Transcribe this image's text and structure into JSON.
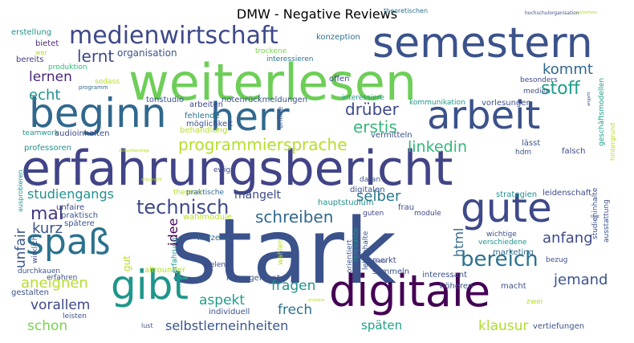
{
  "title": "DMW - Negative Reviews",
  "words": [
    {
      "text": "stark",
      "color": "#3b528b"
    },
    {
      "text": "weiterlesen",
      "color": "#6ece58"
    },
    {
      "text": "erfahrungsbericht",
      "color": "#414487"
    },
    {
      "text": "digitale",
      "color": "#440154"
    },
    {
      "text": "gibt",
      "color": "#1f968b"
    },
    {
      "text": "semestern",
      "color": "#3b528b"
    },
    {
      "text": "beginn",
      "color": "#31688e"
    },
    {
      "text": "herr",
      "color": "#31688e"
    },
    {
      "text": "arbeit",
      "color": "#3b528b"
    },
    {
      "text": "gute",
      "color": "#3e4989"
    },
    {
      "text": "spaß",
      "color": "#2c728e"
    },
    {
      "text": "medienwirtschaft",
      "color": "#3e4989"
    },
    {
      "text": "bereich",
      "color": "#2c728e"
    },
    {
      "text": "technisch",
      "color": "#3e4989"
    },
    {
      "text": "programmiersprache",
      "color": "#b5de2b"
    },
    {
      "text": "schreiben",
      "color": "#31688e"
    },
    {
      "text": "lernt",
      "color": "#3e4989"
    },
    {
      "text": "lernen",
      "color": "#482878"
    },
    {
      "text": "echt",
      "color": "#21918c"
    },
    {
      "text": "stoff",
      "color": "#1f9e89"
    },
    {
      "text": "kommt",
      "color": "#31688e"
    },
    {
      "text": "drüber",
      "color": "#3e4989"
    },
    {
      "text": "erstis",
      "color": "#35b779"
    },
    {
      "text": "linkedin",
      "color": "#35b779"
    },
    {
      "text": "studiengangs",
      "color": "#21918c"
    },
    {
      "text": "mal",
      "color": "#443983"
    },
    {
      "text": "kurz",
      "color": "#3b528b"
    },
    {
      "text": "unfair",
      "color": "#39568c"
    },
    {
      "text": "idee",
      "color": "#440154"
    },
    {
      "text": "selber",
      "color": "#2a788e"
    },
    {
      "text": "mangelt",
      "color": "#3e4989"
    },
    {
      "text": "anfang",
      "color": "#3e4989"
    },
    {
      "text": "html",
      "color": "#31688e"
    },
    {
      "text": "jemand",
      "color": "#3b528b"
    },
    {
      "text": "fragen",
      "color": "#21918c"
    },
    {
      "text": "aneignen",
      "color": "#b5de2b"
    },
    {
      "text": "vorallem",
      "color": "#3e4989"
    },
    {
      "text": "aspekt",
      "color": "#1f9e89"
    },
    {
      "text": "frech",
      "color": "#2c728e"
    },
    {
      "text": "schon",
      "color": "#7ad151"
    },
    {
      "text": "selbstlerneinheiten",
      "color": "#39568c"
    },
    {
      "text": "späten",
      "color": "#1fa088"
    },
    {
      "text": "klausur",
      "color": "#addc30"
    },
    {
      "text": "organisation",
      "color": "#3b528b"
    },
    {
      "text": "erstellung",
      "color": "#21918c"
    },
    {
      "text": "bietet",
      "color": "#482878"
    },
    {
      "text": "wer",
      "color": "#b5de2b"
    },
    {
      "text": "produktion",
      "color": "#35b779"
    },
    {
      "text": "bereits",
      "color": "#443983"
    },
    {
      "text": "konzeption",
      "color": "#2c728e"
    },
    {
      "text": "theoretischen",
      "color": "#2c728e"
    },
    {
      "text": "trockene",
      "color": "#7ad151"
    },
    {
      "text": "interessieren",
      "color": "#2c728e"
    },
    {
      "text": "offen",
      "color": "#3e4989"
    },
    {
      "text": "sodass",
      "color": "#b5de2b"
    },
    {
      "text": "programm",
      "color": "#31688e"
    },
    {
      "text": "tonstudio",
      "color": "#3b528b"
    },
    {
      "text": "notenrückmeldungen",
      "color": "#3b528b"
    },
    {
      "text": "interessiere",
      "color": "#1f968b"
    },
    {
      "text": "arbeiten",
      "color": "#3e4989"
    },
    {
      "text": "fehlende",
      "color": "#2c728e"
    },
    {
      "text": "möglichkeit",
      "color": "#3b528b"
    },
    {
      "text": "behandlung",
      "color": "#b5de2b"
    },
    {
      "text": "kommunikation",
      "color": "#1f968b"
    },
    {
      "text": "vorlesungen",
      "color": "#3b528b"
    },
    {
      "text": "medien",
      "color": "#3b528b"
    },
    {
      "text": "besonders",
      "color": "#3e4989"
    },
    {
      "text": "teamwork",
      "color": "#21918c"
    },
    {
      "text": "audioinhalten",
      "color": "#3e4989"
    },
    {
      "text": "professoren",
      "color": "#21918c"
    },
    {
      "text": "vermitteln",
      "color": "#3b528b"
    },
    {
      "text": "lässt",
      "color": "#3b528b"
    },
    {
      "text": "hdm",
      "color": "#3b528b"
    },
    {
      "text": "falsch",
      "color": "#3e4989"
    },
    {
      "text": "ewig",
      "color": "#3e4989"
    },
    {
      "text": "daran",
      "color": "#3b528b"
    },
    {
      "text": "digitalen",
      "color": "#3b528b"
    },
    {
      "text": "themen",
      "color": "#b5de2b"
    },
    {
      "text": "praktische",
      "color": "#31688e"
    },
    {
      "text": "strategien",
      "color": "#21918c"
    },
    {
      "text": "leidenschaft",
      "color": "#3e4989"
    },
    {
      "text": "unfaire",
      "color": "#3e4989"
    },
    {
      "text": "praktisch",
      "color": "#3b528b"
    },
    {
      "text": "spätere",
      "color": "#3b528b"
    },
    {
      "text": "hauptstudium",
      "color": "#21918c"
    },
    {
      "text": "frau",
      "color": "#3e4989"
    },
    {
      "text": "guten",
      "color": "#3e4989"
    },
    {
      "text": "module",
      "color": "#3e4989"
    },
    {
      "text": "wahlmodule",
      "color": "#b5de2b"
    },
    {
      "text": "herzens",
      "color": "#31688e"
    },
    {
      "text": "vielen",
      "color": "#3e4989"
    },
    {
      "text": "wichtige",
      "color": "#3b528b"
    },
    {
      "text": "verschiedene",
      "color": "#21918c"
    },
    {
      "text": "marketing",
      "color": "#31688e"
    },
    {
      "text": "merkt",
      "color": "#3e4989"
    },
    {
      "text": "sammeln",
      "color": "#3b528b"
    },
    {
      "text": "interessant",
      "color": "#3b528b"
    },
    {
      "text": "bezug",
      "color": "#3b528b"
    },
    {
      "text": "macht",
      "color": "#3b528b"
    },
    {
      "text": "höheren",
      "color": "#3b528b"
    },
    {
      "text": "management",
      "color": "#3b528b"
    },
    {
      "text": "individuell",
      "color": "#3b528b"
    },
    {
      "text": "allrounder",
      "color": "#b5de2b"
    },
    {
      "text": "durchkauen",
      "color": "#3b528b"
    },
    {
      "text": "erfahren",
      "color": "#3b528b"
    },
    {
      "text": "gestalten",
      "color": "#3b528b"
    },
    {
      "text": "leisten",
      "color": "#3b528b"
    },
    {
      "text": "lust",
      "color": "#3b528b"
    },
    {
      "text": "zwei",
      "color": "#b5de2b"
    },
    {
      "text": "vertiefungen",
      "color": "#3b528b"
    },
    {
      "text": "ausprobieren",
      "color": "#21918c"
    },
    {
      "text": "wirklich",
      "color": "#3e4989"
    },
    {
      "text": "erfahrung",
      "color": "#21918c"
    },
    {
      "text": "gut",
      "color": "#b5de2b"
    },
    {
      "text": "online",
      "color": "#3b528b"
    },
    {
      "text": "wahlen",
      "color": "#b5de2b"
    },
    {
      "text": "orientiert",
      "color": "#3b528b"
    },
    {
      "text": "relevante",
      "color": "#21918c"
    },
    {
      "text": "lehrinhalte",
      "color": "#3b528b"
    },
    {
      "text": "studieninhalte",
      "color": "#3b528b"
    },
    {
      "text": "ausstattung",
      "color": "#3b528b"
    },
    {
      "text": "geschäftsmodellen",
      "color": "#1f9e89"
    },
    {
      "text": "hintergrund",
      "color": "#b5de2b"
    },
    {
      "text": "hochschulorganisation",
      "color": "#3b528b"
    },
    {
      "text": "liegt",
      "color": "#3b528b"
    },
    {
      "text": "allgemeine",
      "color": "#3b528b"
    },
    {
      "text": "projekte",
      "color": "#b5de2b"
    },
    {
      "text": "zeitaufwendige",
      "color": "#b5de2b"
    },
    {
      "text": "erwünscht",
      "color": "#b5de2b"
    },
    {
      "text": "angaht",
      "color": "#3b528b"
    },
    {
      "text": "erarbeitete",
      "color": "#b5de2b"
    }
  ]
}
